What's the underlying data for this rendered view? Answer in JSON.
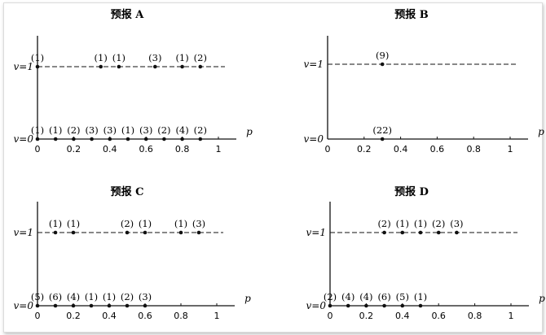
{
  "chart_data": [
    {
      "type": "scatter",
      "title": "预报 A",
      "xlabel": "p",
      "xlim": [
        0,
        1
      ],
      "xticks": [
        "0",
        "0.2",
        "0.4",
        "0.6",
        "0.8",
        "1"
      ],
      "ycategories": [
        "v=0",
        "v=1"
      ],
      "series": [
        {
          "y": 1,
          "points": [
            {
              "p": 0.0,
              "count": 1
            },
            {
              "p": 0.35,
              "count": 1
            },
            {
              "p": 0.45,
              "count": 1
            },
            {
              "p": 0.65,
              "count": 3
            },
            {
              "p": 0.8,
              "count": 1
            },
            {
              "p": 0.9,
              "count": 2
            }
          ]
        },
        {
          "y": 0,
          "points": [
            {
              "p": 0.0,
              "count": 1
            },
            {
              "p": 0.1,
              "count": 1
            },
            {
              "p": 0.2,
              "count": 2
            },
            {
              "p": 0.3,
              "count": 3
            },
            {
              "p": 0.4,
              "count": 3
            },
            {
              "p": 0.5,
              "count": 1
            },
            {
              "p": 0.6,
              "count": 3
            },
            {
              "p": 0.7,
              "count": 2
            },
            {
              "p": 0.8,
              "count": 4
            },
            {
              "p": 0.9,
              "count": 2
            }
          ]
        }
      ]
    },
    {
      "type": "scatter",
      "title": "预报 B",
      "xlabel": "p",
      "xlim": [
        0,
        1
      ],
      "xticks": [
        "0",
        "0.2",
        "0.4",
        "0.6",
        "0.8",
        "1"
      ],
      "ycategories": [
        "v=0",
        "v=1"
      ],
      "series": [
        {
          "y": 1,
          "points": [
            {
              "p": 0.3,
              "count": 9
            }
          ]
        },
        {
          "y": 0,
          "points": [
            {
              "p": 0.3,
              "count": 22
            }
          ]
        }
      ]
    },
    {
      "type": "scatter",
      "title": "预报 C",
      "xlabel": "p",
      "xlim": [
        0,
        1
      ],
      "xticks": [
        "0",
        "0.2",
        "0.4",
        "0.6",
        "0.8",
        "1"
      ],
      "ycategories": [
        "v=0",
        "v=1"
      ],
      "series": [
        {
          "y": 1,
          "points": [
            {
              "p": 0.1,
              "count": 1
            },
            {
              "p": 0.2,
              "count": 1
            },
            {
              "p": 0.5,
              "count": 2
            },
            {
              "p": 0.6,
              "count": 1
            },
            {
              "p": 0.8,
              "count": 1
            },
            {
              "p": 0.9,
              "count": 3
            }
          ]
        },
        {
          "y": 0,
          "points": [
            {
              "p": 0.0,
              "count": 5
            },
            {
              "p": 0.1,
              "count": 6
            },
            {
              "p": 0.2,
              "count": 4
            },
            {
              "p": 0.3,
              "count": 1
            },
            {
              "p": 0.4,
              "count": 1
            },
            {
              "p": 0.5,
              "count": 2
            },
            {
              "p": 0.6,
              "count": 3
            }
          ]
        }
      ]
    },
    {
      "type": "scatter",
      "title": "预报 D",
      "xlabel": "p",
      "xlim": [
        0,
        1
      ],
      "xticks": [
        "0",
        "0.2",
        "0.4",
        "0.6",
        "0.8",
        "1"
      ],
      "ycategories": [
        "v=0",
        "v=1"
      ],
      "series": [
        {
          "y": 1,
          "points": [
            {
              "p": 0.3,
              "count": 2
            },
            {
              "p": 0.4,
              "count": 1
            },
            {
              "p": 0.5,
              "count": 1
            },
            {
              "p": 0.6,
              "count": 2
            },
            {
              "p": 0.7,
              "count": 3
            }
          ]
        },
        {
          "y": 0,
          "points": [
            {
              "p": 0.0,
              "count": 2
            },
            {
              "p": 0.1,
              "count": 4
            },
            {
              "p": 0.2,
              "count": 4
            },
            {
              "p": 0.3,
              "count": 6
            },
            {
              "p": 0.4,
              "count": 5
            },
            {
              "p": 0.5,
              "count": 1
            }
          ]
        }
      ]
    }
  ]
}
